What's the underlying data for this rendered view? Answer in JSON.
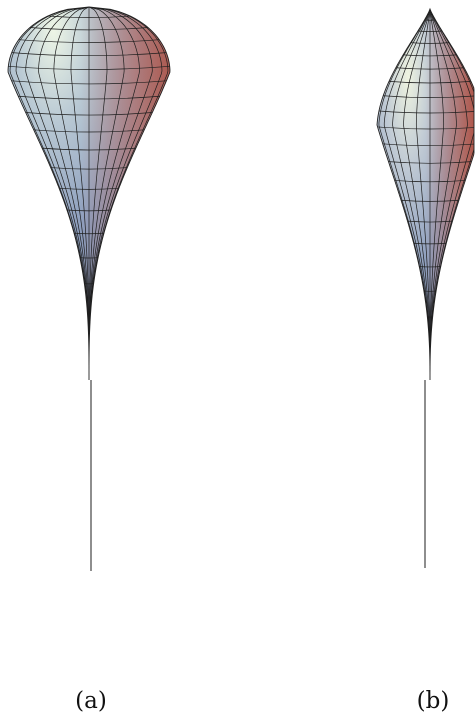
{
  "panels": [
    {
      "id": "a",
      "caption": "(a)",
      "shape": "round-top teardrop surface with long tapering tail"
    },
    {
      "id": "b",
      "caption": "(b)",
      "shape": "pointed-top teardrop surface with long tapering tail"
    }
  ],
  "colors": {
    "highlight": "#e3efd9",
    "cool": "#8fa3c4",
    "warm": "#c4624d",
    "mesh": "#1e1e1e"
  }
}
